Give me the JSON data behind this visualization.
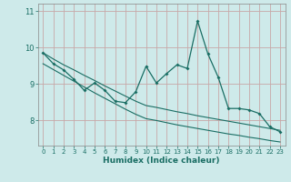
{
  "xlabel": "Humidex (Indice chaleur)",
  "background_color": "#ceeaea",
  "grid_color": "#c8a8a8",
  "line_color": "#1a6e64",
  "x": [
    0,
    1,
    2,
    3,
    4,
    5,
    6,
    7,
    8,
    9,
    10,
    11,
    12,
    13,
    14,
    15,
    16,
    17,
    18,
    19,
    20,
    21,
    22,
    23
  ],
  "y_main": [
    9.85,
    9.55,
    9.38,
    9.12,
    8.82,
    9.02,
    8.82,
    8.52,
    8.48,
    8.78,
    9.48,
    9.02,
    9.28,
    9.52,
    9.42,
    10.72,
    9.82,
    9.18,
    8.32,
    8.32,
    8.28,
    8.18,
    7.82,
    7.68
  ],
  "trend_upper": [
    9.85,
    9.68,
    9.52,
    9.38,
    9.23,
    9.09,
    8.94,
    8.8,
    8.66,
    8.52,
    8.4,
    8.35,
    8.29,
    8.23,
    8.18,
    8.12,
    8.07,
    8.02,
    7.97,
    7.92,
    7.87,
    7.82,
    7.77,
    7.72
  ],
  "trend_lower": [
    9.55,
    9.39,
    9.23,
    9.07,
    8.91,
    8.75,
    8.6,
    8.45,
    8.3,
    8.16,
    8.04,
    7.99,
    7.93,
    7.87,
    7.82,
    7.77,
    7.72,
    7.67,
    7.62,
    7.58,
    7.53,
    7.49,
    7.44,
    7.4
  ],
  "ylim": [
    7.3,
    11.2
  ],
  "yticks": [
    8,
    9,
    10,
    11
  ],
  "xlim": [
    -0.5,
    23.5
  ]
}
